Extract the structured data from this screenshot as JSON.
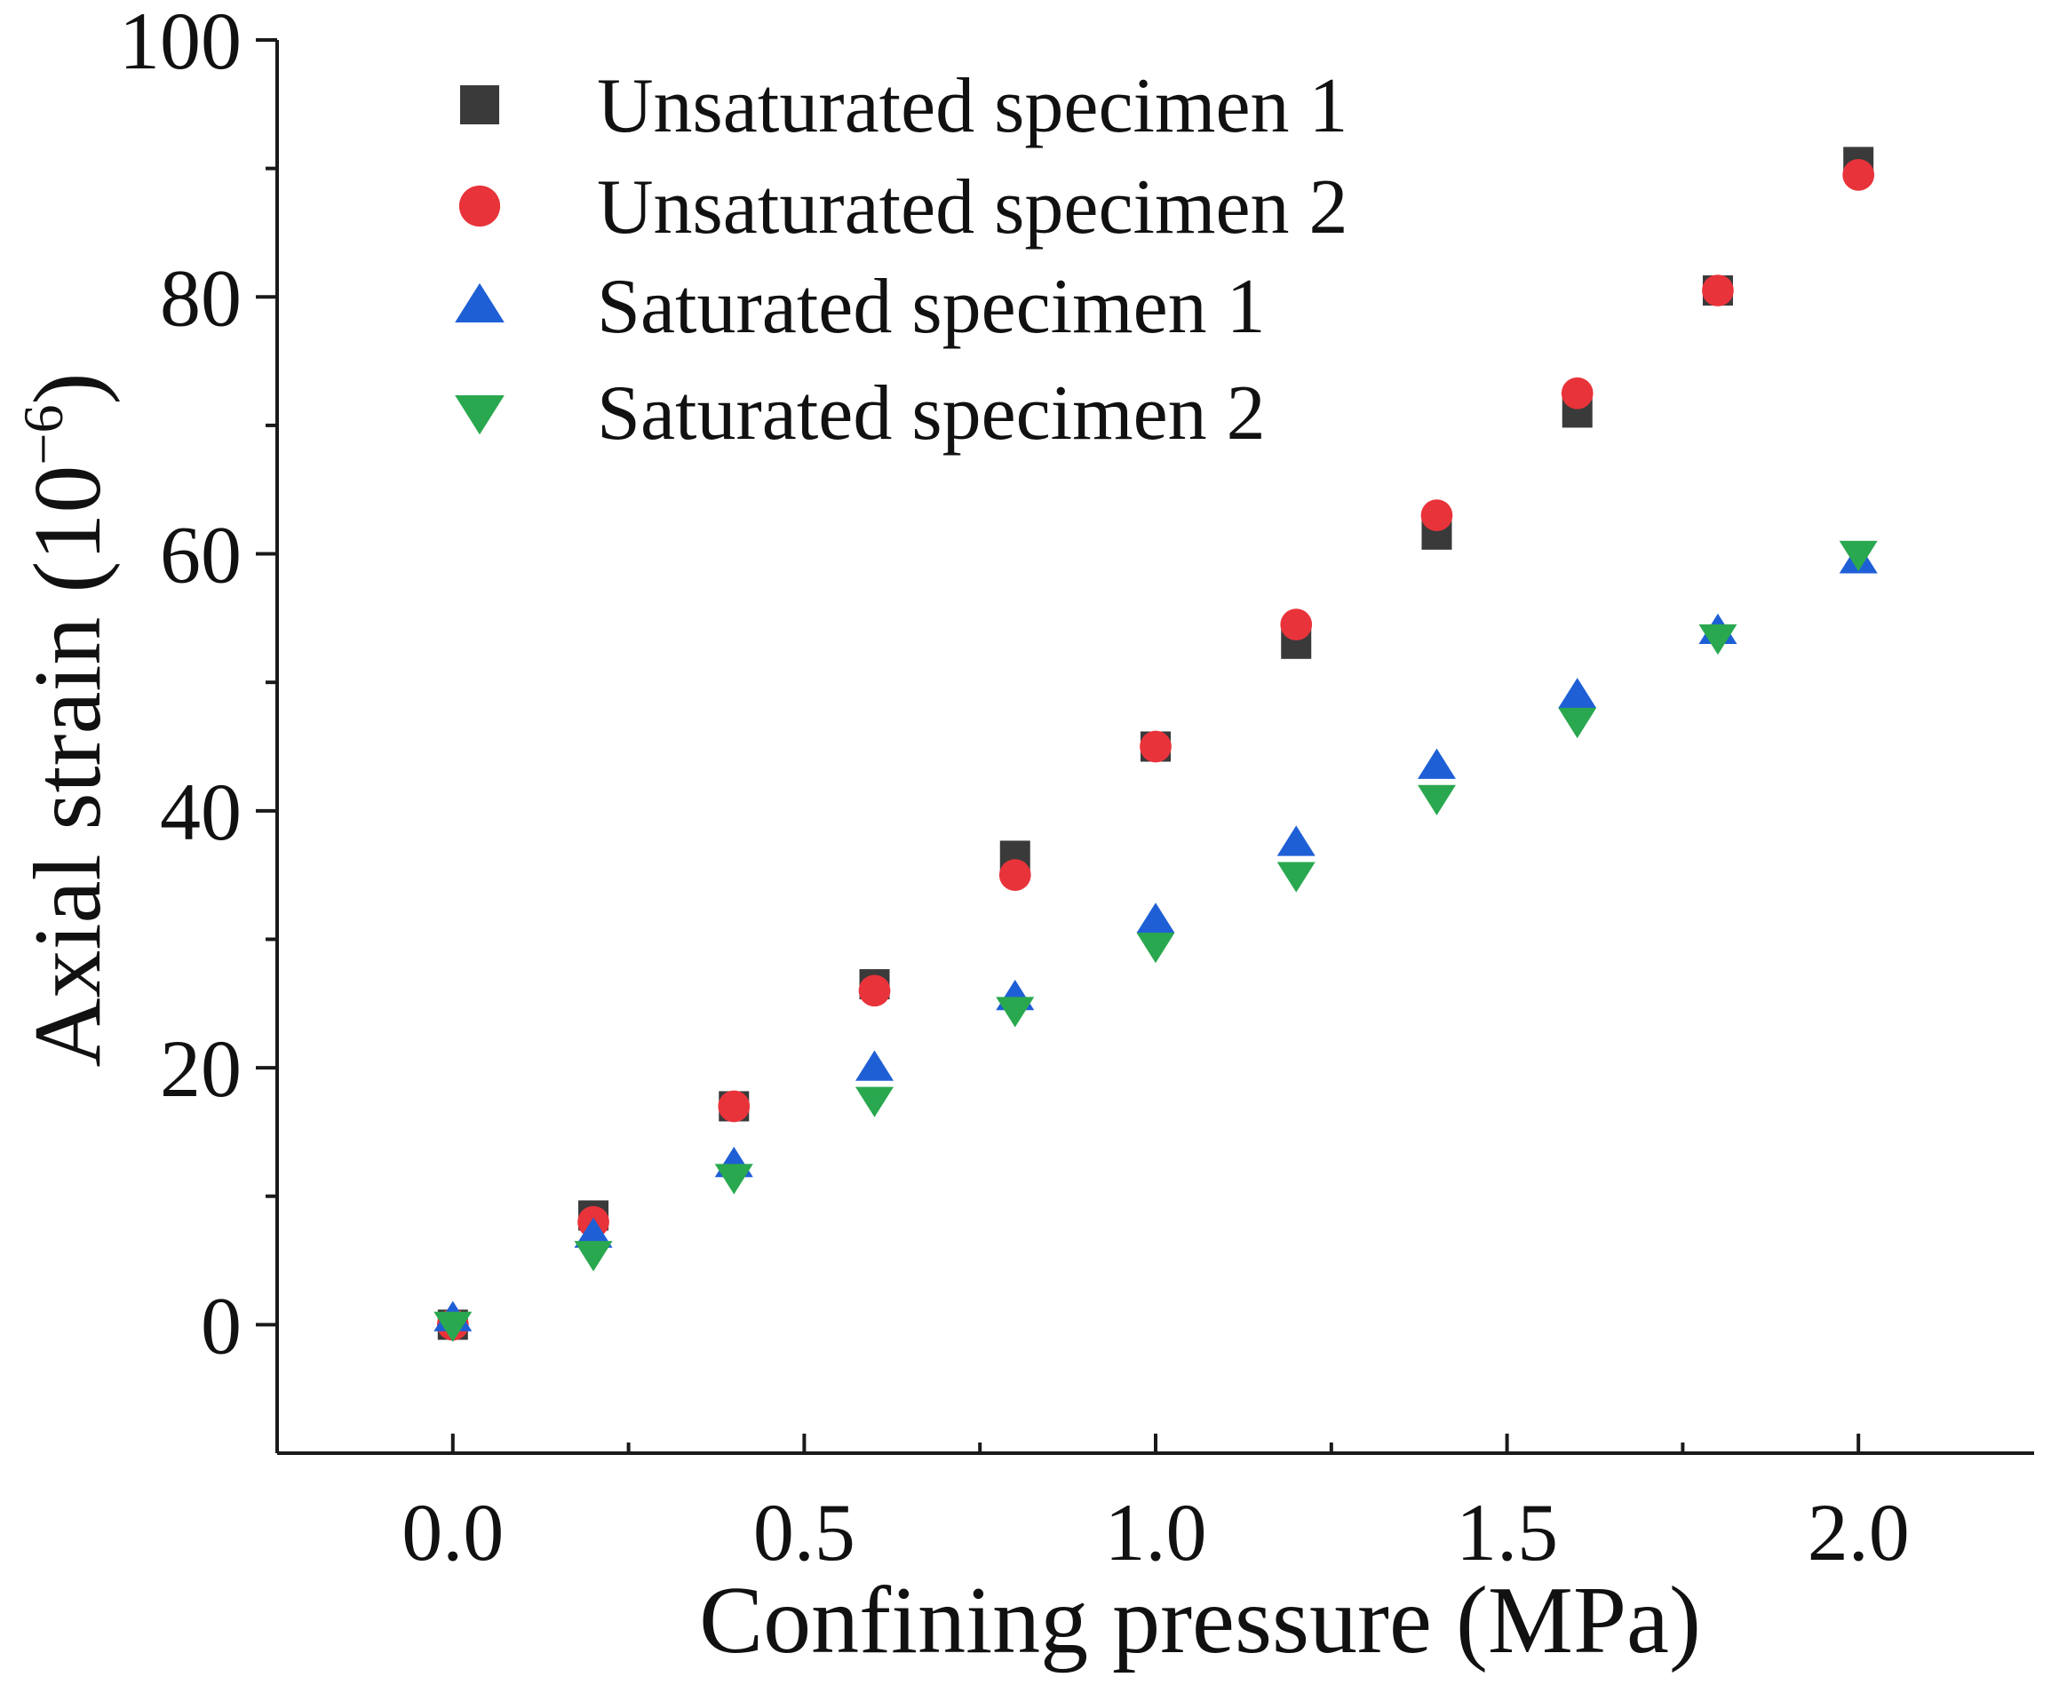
{
  "chart_data": {
    "type": "scatter",
    "title": "",
    "xlabel": "Confining pressure (MPa)",
    "ylabel_main": "Axial strain (10",
    "ylabel_exp": "−6",
    "ylabel_close": ")",
    "xlim": [
      -0.25,
      2.25
    ],
    "ylim": [
      -10,
      100
    ],
    "xticks_major": [
      0.0,
      0.5,
      1.0,
      1.5,
      2.0
    ],
    "xtick_labels": [
      "0.0",
      "0.5",
      "1.0",
      "1.5",
      "2.0"
    ],
    "xticks_minor": [
      0.25,
      0.75,
      1.25,
      1.75
    ],
    "yticks_major": [
      0,
      20,
      40,
      60,
      80,
      100
    ],
    "ytick_labels": [
      "0",
      "20",
      "40",
      "60",
      "80",
      "100"
    ],
    "yticks_minor": [
      10,
      30,
      50,
      70,
      90
    ],
    "legend_position": "top-left",
    "x": [
      0.0,
      0.2,
      0.4,
      0.6,
      0.8,
      1.0,
      1.2,
      1.4,
      1.6,
      1.8,
      2.0
    ],
    "series": [
      {
        "name": "Unsaturated specimen 1",
        "marker": "square",
        "color": "#3a3a3a",
        "values": [
          0,
          8.5,
          17,
          26.5,
          36.5,
          45,
          53,
          61.5,
          71,
          80.5,
          90.5
        ]
      },
      {
        "name": "Unsaturated specimen 2",
        "marker": "circle",
        "color": "#e8333a",
        "values": [
          0,
          8,
          17,
          26,
          35,
          45,
          54.5,
          63,
          72.5,
          80.5,
          89.5
        ]
      },
      {
        "name": "Saturated specimen 1",
        "marker": "triangle-up",
        "color": "#1f5fd6",
        "values": [
          0.5,
          7,
          12.5,
          20,
          25.5,
          31.5,
          37.5,
          43.5,
          49,
          54,
          59.5
        ]
      },
      {
        "name": "Saturated specimen 2",
        "marker": "triangle-down",
        "color": "#2aa84f",
        "values": [
          0,
          5.5,
          11.5,
          17.5,
          24.5,
          29.5,
          35,
          41,
          47,
          53.5,
          60
        ]
      }
    ]
  }
}
